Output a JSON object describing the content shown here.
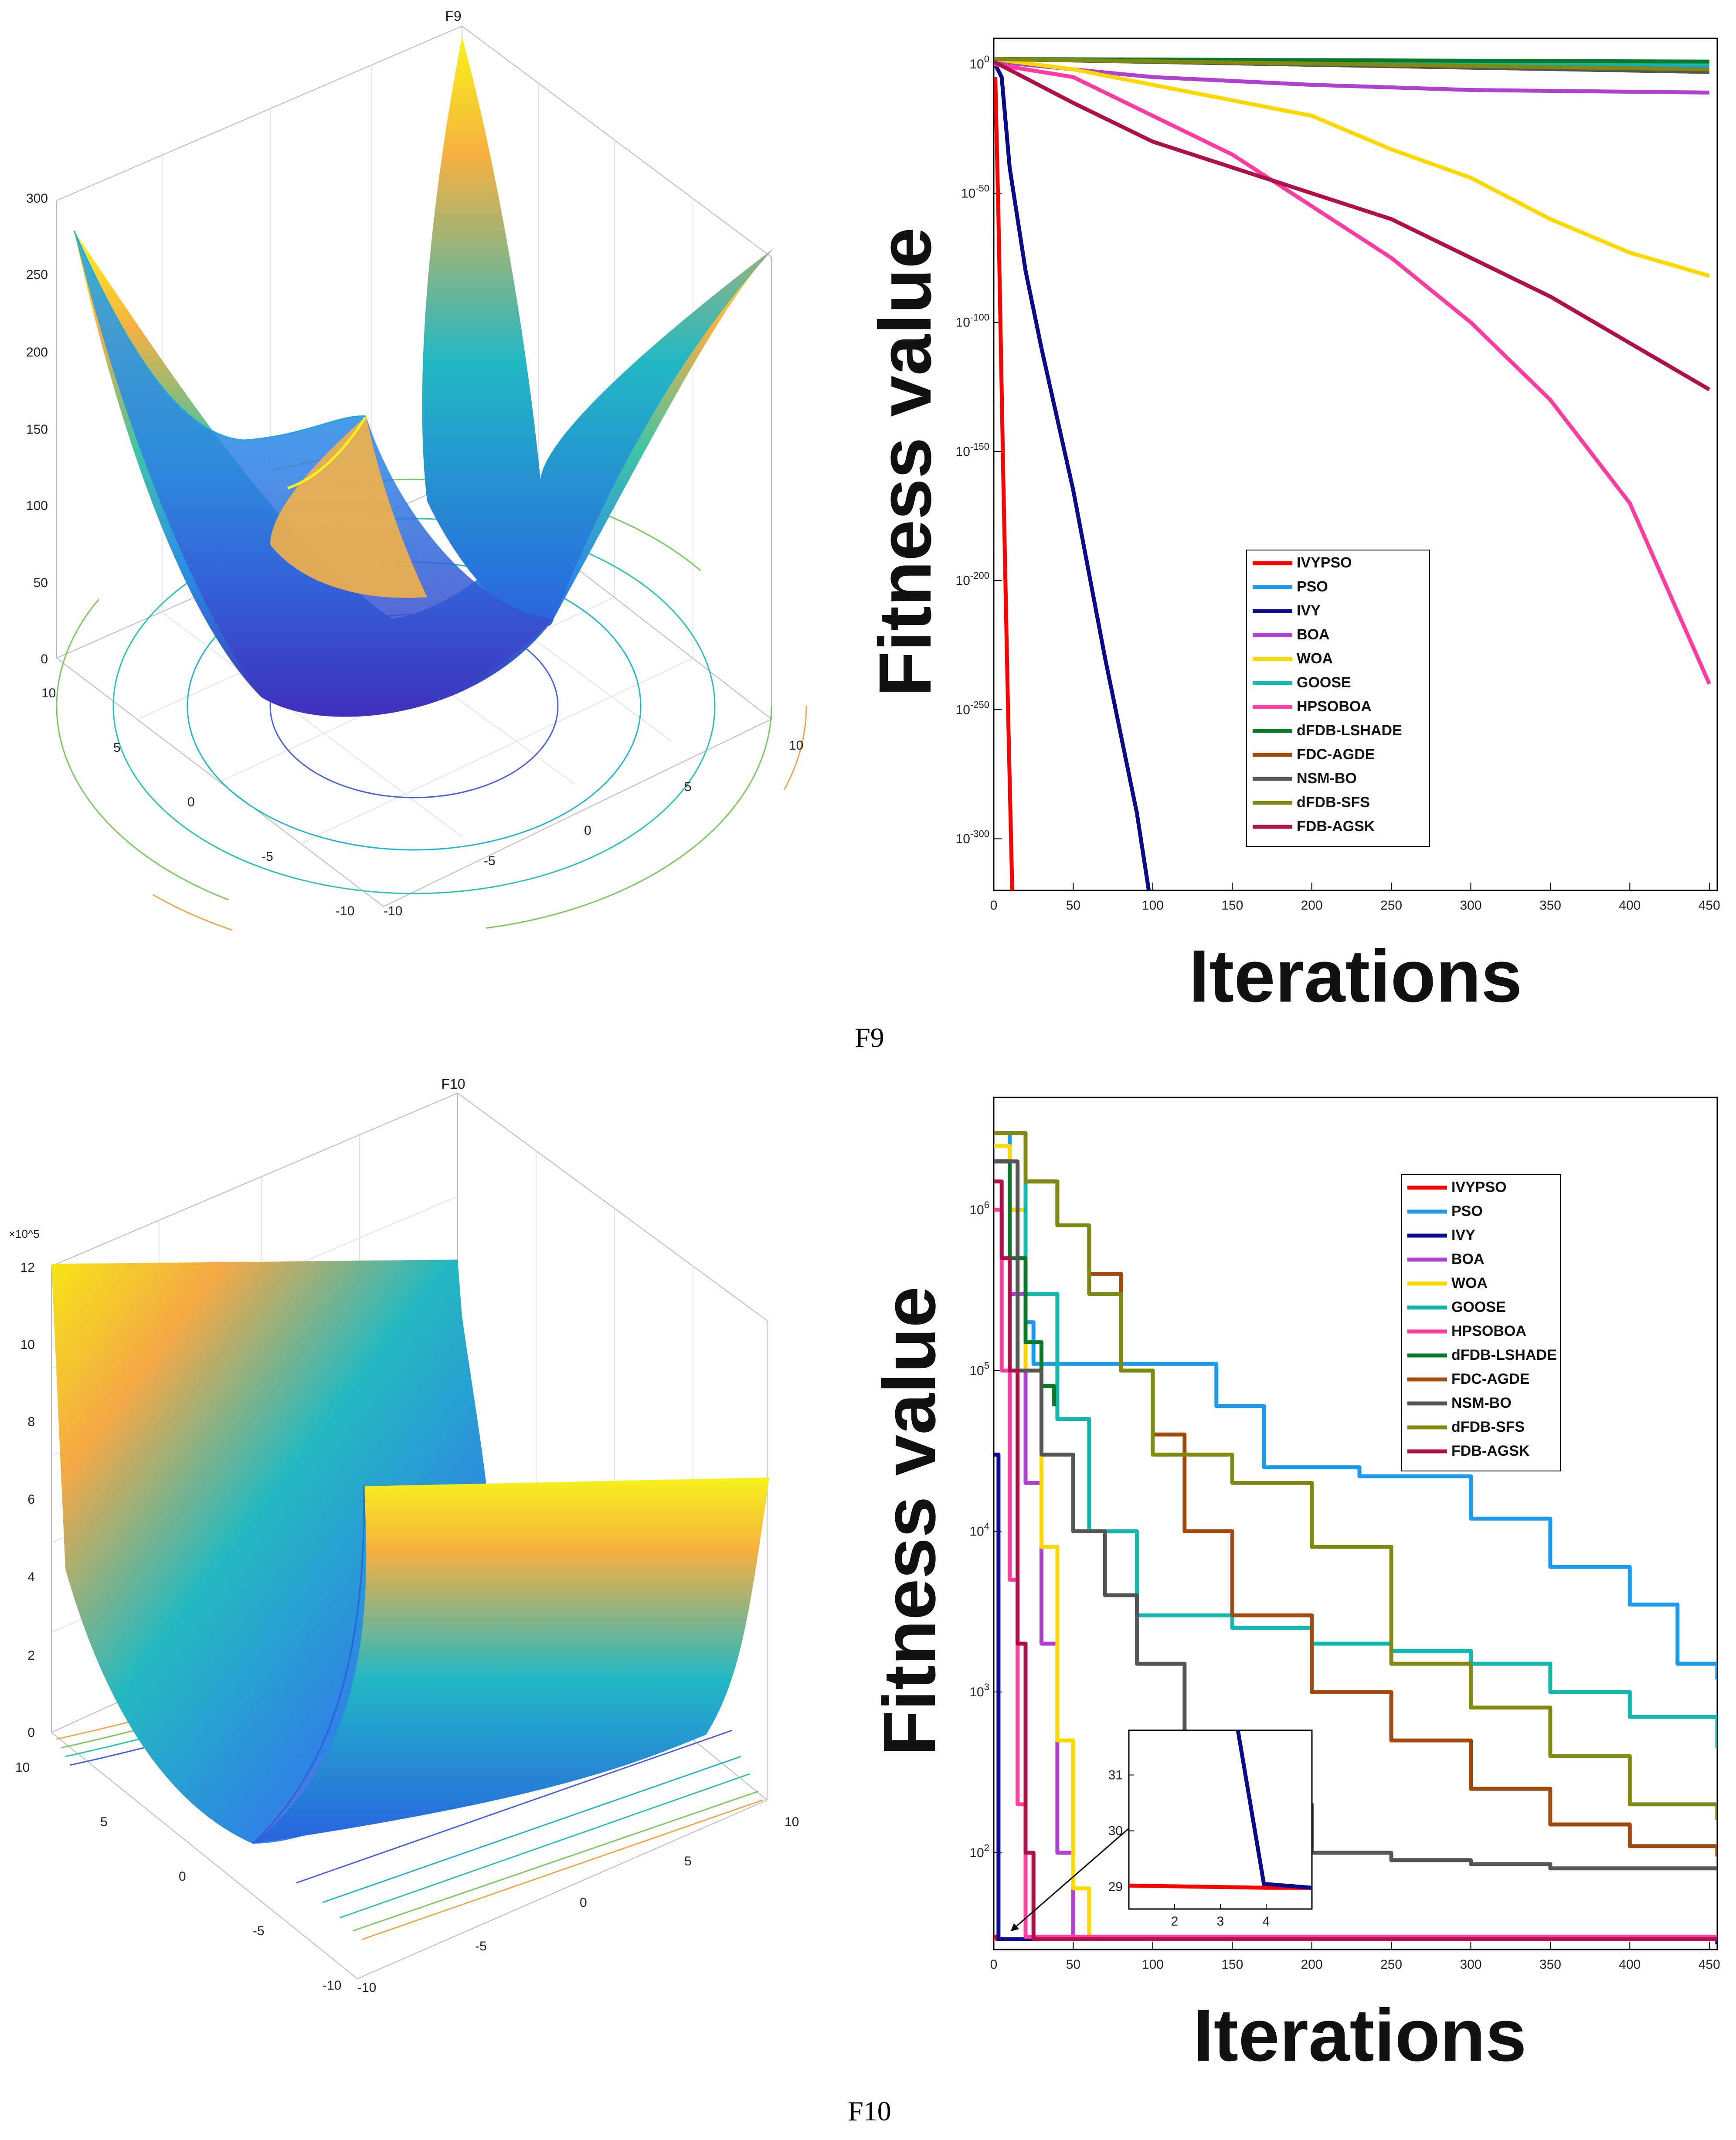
{
  "captions": {
    "top": "F9",
    "bottom": "F10"
  },
  "chart_data": [
    {
      "type": "surface",
      "title": "F9",
      "z_ticks": [
        "0",
        "50",
        "100",
        "150",
        "200",
        "250",
        "300"
      ],
      "x_ticks": [
        "10",
        "5",
        "0",
        "-5",
        "-10"
      ],
      "y_ticks": [
        "-10",
        "-5",
        "0",
        "5",
        "10"
      ]
    },
    {
      "type": "line",
      "title": "",
      "xlabel": "Iterations",
      "ylabel": "Fitness value",
      "yscale": "log",
      "xlim": [
        0,
        455
      ],
      "ylim_exp": [
        -320,
        10
      ],
      "x_ticks": [
        "0",
        "50",
        "100",
        "150",
        "200",
        "250",
        "300",
        "350",
        "400",
        "450"
      ],
      "y_ticks": [
        "10^0",
        "10^-50",
        "10^-100",
        "10^-150",
        "10^-200",
        "10^-250",
        "10^-300"
      ],
      "legend_position": "center-right",
      "series": [
        {
          "name": "IVYPSO",
          "color": "#ff0000",
          "points": [
            [
              1,
              -5
            ],
            [
              3,
              -60
            ],
            [
              6,
              -160
            ],
            [
              9,
              -250
            ],
            [
              12,
              -330
            ]
          ]
        },
        {
          "name": "PSO",
          "color": "#1a9bf0",
          "points": [
            [
              0,
              2
            ],
            [
              450,
              -1
            ]
          ]
        },
        {
          "name": "IVY",
          "color": "#0a0a8a",
          "points": [
            [
              0,
              1
            ],
            [
              5,
              -5
            ],
            [
              10,
              -40
            ],
            [
              20,
              -80
            ],
            [
              30,
              -110
            ],
            [
              50,
              -165
            ],
            [
              70,
              -230
            ],
            [
              90,
              -290
            ],
            [
              100,
              -330
            ]
          ]
        },
        {
          "name": "BOA",
          "color": "#b040d0",
          "points": [
            [
              0,
              1
            ],
            [
              100,
              -5
            ],
            [
              200,
              -8
            ],
            [
              300,
              -10
            ],
            [
              450,
              -11
            ]
          ]
        },
        {
          "name": "WOA",
          "color": "#ffd800",
          "points": [
            [
              0,
              2
            ],
            [
              50,
              -2
            ],
            [
              100,
              -8
            ],
            [
              150,
              -14
            ],
            [
              200,
              -20
            ],
            [
              250,
              -33
            ],
            [
              300,
              -44
            ],
            [
              350,
              -60
            ],
            [
              400,
              -73
            ],
            [
              450,
              -82
            ]
          ]
        },
        {
          "name": "GOOSE",
          "color": "#10b8b0",
          "points": [
            [
              0,
              2
            ],
            [
              450,
              0
            ]
          ]
        },
        {
          "name": "HPSOBOA",
          "color": "#ff3ca0",
          "points": [
            [
              0,
              0
            ],
            [
              50,
              -5
            ],
            [
              100,
              -20
            ],
            [
              150,
              -35
            ],
            [
              200,
              -55
            ],
            [
              250,
              -75
            ],
            [
              300,
              -100
            ],
            [
              350,
              -130
            ],
            [
              400,
              -170
            ],
            [
              450,
              -240
            ]
          ]
        },
        {
          "name": "dFDB-LSHADE",
          "color": "#0a7a2a",
          "points": [
            [
              0,
              2
            ],
            [
              450,
              1
            ]
          ]
        },
        {
          "name": "FDC-AGDE",
          "color": "#a04a10",
          "points": [
            [
              0,
              2
            ],
            [
              450,
              -3
            ]
          ]
        },
        {
          "name": "NSM-BO",
          "color": "#555555",
          "points": [
            [
              0,
              2
            ],
            [
              450,
              -3
            ]
          ]
        },
        {
          "name": "dFDB-SFS",
          "color": "#808a10",
          "points": [
            [
              0,
              2
            ],
            [
              450,
              -2
            ]
          ]
        },
        {
          "name": "FDB-AGSK",
          "color": "#b0104a",
          "points": [
            [
              0,
              1
            ],
            [
              50,
              -15
            ],
            [
              100,
              -30
            ],
            [
              150,
              -40
            ],
            [
              200,
              -50
            ],
            [
              250,
              -60
            ],
            [
              300,
              -75
            ],
            [
              350,
              -90
            ],
            [
              400,
              -108
            ],
            [
              450,
              -126
            ]
          ]
        }
      ]
    },
    {
      "type": "surface",
      "title": "F10",
      "z_multiplier": "×10^5",
      "z_ticks": [
        "0",
        "2",
        "4",
        "6",
        "8",
        "10",
        "12"
      ],
      "x_ticks": [
        "10",
        "5",
        "0",
        "-5",
        "-10"
      ],
      "y_ticks": [
        "-10",
        "-5",
        "0",
        "5",
        "10"
      ]
    },
    {
      "type": "line",
      "title": "",
      "xlabel": "Iterations",
      "ylabel": "Fitness value",
      "yscale": "log",
      "xlim": [
        0,
        455
      ],
      "ylim": [
        25,
        5000000
      ],
      "x_ticks": [
        "0",
        "50",
        "100",
        "150",
        "200",
        "250",
        "300",
        "350",
        "400",
        "450"
      ],
      "y_ticks": [
        "10^2",
        "10^3",
        "10^4",
        "10^5",
        "10^6"
      ],
      "legend_position": "top-right",
      "series": [
        {
          "name": "IVYPSO",
          "color": "#ff0000",
          "points": [
            [
              0,
              30
            ],
            [
              2,
              29
            ],
            [
              455,
              29
            ]
          ]
        },
        {
          "name": "PSO",
          "color": "#1a9bf0",
          "points": [
            [
              0,
              3000000
            ],
            [
              10,
              1000000
            ],
            [
              20,
              200000
            ],
            [
              25,
              110000
            ],
            [
              100,
              110000
            ],
            [
              140,
              60000
            ],
            [
              170,
              25000
            ],
            [
              230,
              22000
            ],
            [
              300,
              12000
            ],
            [
              350,
              6000
            ],
            [
              400,
              3500
            ],
            [
              430,
              1500
            ],
            [
              455,
              1200
            ]
          ]
        },
        {
          "name": "IVY",
          "color": "#0a0a8a",
          "points": [
            [
              0,
              30000
            ],
            [
              2,
              30000
            ],
            [
              3,
              29
            ],
            [
              455,
              27
            ]
          ]
        },
        {
          "name": "BOA",
          "color": "#b040d0",
          "points": [
            [
              0,
              2000000
            ],
            [
              10,
              300000
            ],
            [
              20,
              20000
            ],
            [
              30,
              2000
            ],
            [
              40,
              100
            ],
            [
              50,
              30
            ],
            [
              455,
              29
            ]
          ]
        },
        {
          "name": "WOA",
          "color": "#ffd800",
          "points": [
            [
              0,
              2500000
            ],
            [
              10,
              1000000
            ],
            [
              20,
              100000
            ],
            [
              30,
              8000
            ],
            [
              40,
              500
            ],
            [
              50,
              60
            ],
            [
              60,
              30
            ],
            [
              455,
              29
            ]
          ]
        },
        {
          "name": "GOOSE",
          "color": "#10b8b0",
          "points": [
            [
              0,
              3000000
            ],
            [
              20,
              300000
            ],
            [
              40,
              50000
            ],
            [
              60,
              10000
            ],
            [
              90,
              3000
            ],
            [
              150,
              2500
            ],
            [
              200,
              2000
            ],
            [
              250,
              1800
            ],
            [
              300,
              1500
            ],
            [
              350,
              1000
            ],
            [
              400,
              700
            ],
            [
              455,
              450
            ]
          ]
        },
        {
          "name": "HPSOBOA",
          "color": "#ff3ca0",
          "points": [
            [
              0,
              1000000
            ],
            [
              5,
              100000
            ],
            [
              10,
              5000
            ],
            [
              15,
              200
            ],
            [
              20,
              30
            ],
            [
              455,
              29
            ]
          ]
        },
        {
          "name": "dFDB-LSHADE",
          "color": "#0a7a2a",
          "points": [
            [
              0,
              2000000
            ],
            [
              10,
              500000
            ],
            [
              20,
              150000
            ],
            [
              30,
              80000
            ],
            [
              38,
              60000
            ]
          ]
        },
        {
          "name": "FDC-AGDE",
          "color": "#a04a10",
          "points": [
            [
              0,
              3000000
            ],
            [
              20,
              1500000
            ],
            [
              40,
              800000
            ],
            [
              60,
              400000
            ],
            [
              80,
              100000
            ],
            [
              100,
              40000
            ],
            [
              120,
              10000
            ],
            [
              150,
              3000
            ],
            [
              200,
              1000
            ],
            [
              250,
              500
            ],
            [
              300,
              250
            ],
            [
              350,
              150
            ],
            [
              400,
              110
            ],
            [
              455,
              95
            ]
          ]
        },
        {
          "name": "NSM-BO",
          "color": "#555555",
          "points": [
            [
              0,
              2000000
            ],
            [
              15,
              100000
            ],
            [
              30,
              30000
            ],
            [
              50,
              10000
            ],
            [
              70,
              4000
            ],
            [
              90,
              1500
            ],
            [
              120,
              500
            ],
            [
              160,
              200
            ],
            [
              200,
              100
            ],
            [
              250,
              90
            ],
            [
              300,
              85
            ],
            [
              350,
              80
            ],
            [
              455,
              78
            ]
          ]
        },
        {
          "name": "dFDB-SFS",
          "color": "#808a10",
          "points": [
            [
              0,
              3000000
            ],
            [
              20,
              1500000
            ],
            [
              40,
              800000
            ],
            [
              60,
              300000
            ],
            [
              80,
              100000
            ],
            [
              100,
              30000
            ],
            [
              150,
              20000
            ],
            [
              200,
              8000
            ],
            [
              250,
              1500
            ],
            [
              300,
              800
            ],
            [
              350,
              400
            ],
            [
              400,
              200
            ],
            [
              455,
              160
            ]
          ]
        },
        {
          "name": "FDB-AGSK",
          "color": "#b0104a",
          "points": [
            [
              0,
              1500000
            ],
            [
              5,
              500000
            ],
            [
              10,
              100000
            ],
            [
              15,
              2000
            ],
            [
              20,
              100
            ],
            [
              25,
              29
            ],
            [
              455,
              29
            ]
          ]
        }
      ],
      "inset": {
        "x_ticks": [
          "2",
          "3",
          "4"
        ],
        "y_ticks": [
          "29",
          "30",
          "31"
        ],
        "xlim": [
          1,
          5
        ],
        "ylim": [
          28.6,
          31.8
        ]
      }
    }
  ]
}
